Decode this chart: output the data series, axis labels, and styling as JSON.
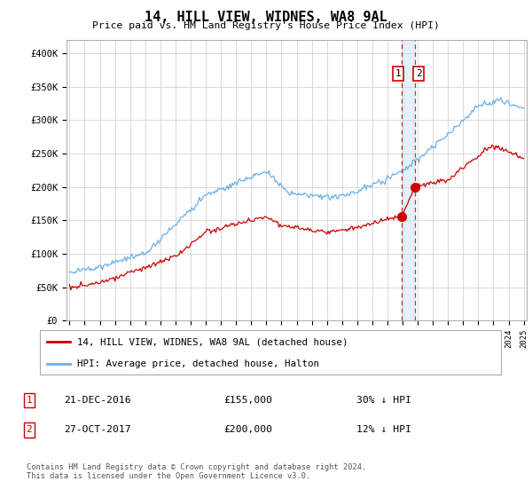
{
  "title": "14, HILL VIEW, WIDNES, WA8 9AL",
  "subtitle": "Price paid vs. HM Land Registry's House Price Index (HPI)",
  "legend_label_red": "14, HILL VIEW, WIDNES, WA8 9AL (detached house)",
  "legend_label_blue": "HPI: Average price, detached house, Halton",
  "transaction1_date": "21-DEC-2016",
  "transaction1_price": "£155,000",
  "transaction1_hpi": "30% ↓ HPI",
  "transaction2_date": "27-OCT-2017",
  "transaction2_price": "£200,000",
  "transaction2_hpi": "12% ↓ HPI",
  "footer": "Contains HM Land Registry data © Crown copyright and database right 2024.\nThis data is licensed under the Open Government Licence v3.0.",
  "red_color": "#cc0000",
  "blue_color": "#6ab0e8",
  "dashed_line_color": "#cc0000",
  "shade_color": "#d0e8f8",
  "grid_color": "#cccccc",
  "ylim": [
    0,
    420000
  ],
  "yticks": [
    0,
    50000,
    100000,
    150000,
    200000,
    250000,
    300000,
    350000,
    400000
  ],
  "year_start": 1995,
  "year_end": 2025,
  "transaction1_year": 2016.97,
  "transaction1_price_val": 155000,
  "transaction2_year": 2017.82,
  "transaction2_price_val": 200000,
  "box_numbers_color": "#cc0000"
}
